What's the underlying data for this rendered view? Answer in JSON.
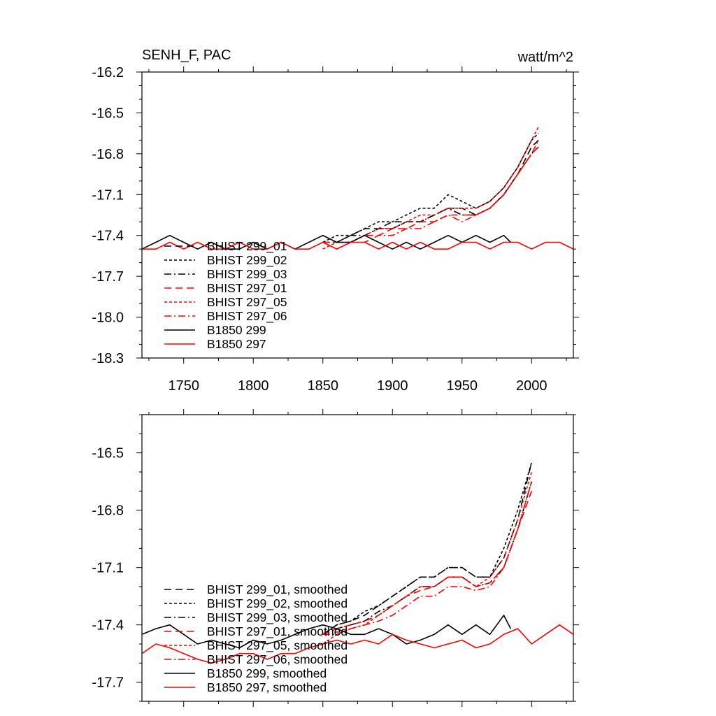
{
  "chart_data": [
    {
      "type": "line",
      "title": "SENH_F, PAC",
      "units": "watt/m^2",
      "xlim": [
        1720,
        2030
      ],
      "ylim": [
        -18.3,
        -16.2
      ],
      "x_ticks": [
        1750,
        1800,
        1850,
        1900,
        1950,
        2000
      ],
      "y_ticks": [
        -16.2,
        -16.5,
        -16.8,
        -17.1,
        -17.4,
        -17.7,
        -18.0,
        -18.3
      ],
      "legend_position": "bottom-left",
      "series": [
        {
          "name": "BHIST 299_01",
          "color": "#000000",
          "dash": "long-dash",
          "x": [
            1850,
            1860,
            1870,
            1880,
            1890,
            1900,
            1910,
            1920,
            1930,
            1940,
            1950,
            1960,
            1970,
            1980,
            1990,
            2000,
            2005
          ],
          "y": [
            -17.4,
            -17.45,
            -17.4,
            -17.35,
            -17.35,
            -17.3,
            -17.3,
            -17.3,
            -17.25,
            -17.2,
            -17.2,
            -17.25,
            -17.2,
            -17.1,
            -16.95,
            -16.75,
            -16.7
          ]
        },
        {
          "name": "BHIST 299_02",
          "color": "#000000",
          "dash": "short-dash",
          "x": [
            1850,
            1860,
            1870,
            1880,
            1890,
            1900,
            1910,
            1920,
            1930,
            1940,
            1950,
            1960,
            1970,
            1980,
            1990,
            2000,
            2005
          ],
          "y": [
            -17.45,
            -17.4,
            -17.4,
            -17.35,
            -17.3,
            -17.3,
            -17.25,
            -17.2,
            -17.2,
            -17.1,
            -17.15,
            -17.2,
            -17.15,
            -17.05,
            -16.9,
            -16.7,
            -16.65
          ]
        },
        {
          "name": "BHIST 299_03",
          "color": "#000000",
          "dash": "dash-dot",
          "x": [
            1850,
            1860,
            1870,
            1880,
            1890,
            1900,
            1910,
            1920,
            1930,
            1940,
            1950,
            1960,
            1970,
            1980,
            1990,
            2000,
            2005
          ],
          "y": [
            -17.45,
            -17.45,
            -17.4,
            -17.4,
            -17.35,
            -17.35,
            -17.3,
            -17.3,
            -17.25,
            -17.2,
            -17.25,
            -17.25,
            -17.2,
            -17.1,
            -16.95,
            -16.8,
            -16.75
          ]
        },
        {
          "name": "BHIST 297_01",
          "color": "#ff0000",
          "dash": "long-dash",
          "x": [
            1850,
            1860,
            1870,
            1880,
            1890,
            1900,
            1910,
            1920,
            1930,
            1940,
            1950,
            1960,
            1970,
            1980,
            1990,
            2000,
            2005
          ],
          "y": [
            -17.45,
            -17.45,
            -17.45,
            -17.4,
            -17.4,
            -17.35,
            -17.35,
            -17.3,
            -17.3,
            -17.25,
            -17.25,
            -17.25,
            -17.2,
            -17.1,
            -16.95,
            -16.8,
            -16.75
          ]
        },
        {
          "name": "BHIST 297_05",
          "color": "#ff0000",
          "dash": "short-dash",
          "x": [
            1850,
            1860,
            1870,
            1880,
            1890,
            1900,
            1910,
            1920,
            1930,
            1940,
            1950,
            1960,
            1970,
            1980,
            1990,
            2000,
            2005
          ],
          "y": [
            -17.5,
            -17.45,
            -17.45,
            -17.4,
            -17.35,
            -17.35,
            -17.3,
            -17.25,
            -17.25,
            -17.2,
            -17.2,
            -17.2,
            -17.15,
            -17.05,
            -16.9,
            -16.7,
            -16.6
          ]
        },
        {
          "name": "BHIST 297_06",
          "color": "#ff0000",
          "dash": "dash-dot",
          "x": [
            1850,
            1860,
            1870,
            1880,
            1890,
            1900,
            1910,
            1920,
            1930,
            1940,
            1950,
            1960,
            1970,
            1980,
            1990,
            2000,
            2005
          ],
          "y": [
            -17.45,
            -17.5,
            -17.45,
            -17.45,
            -17.4,
            -17.4,
            -17.35,
            -17.35,
            -17.3,
            -17.25,
            -17.3,
            -17.25,
            -17.2,
            -17.1,
            -16.95,
            -16.8,
            -16.7
          ]
        },
        {
          "name": "B1850 299",
          "color": "#000000",
          "dash": "solid",
          "x": [
            1720,
            1730,
            1740,
            1750,
            1760,
            1770,
            1780,
            1790,
            1800,
            1810,
            1820,
            1830,
            1840,
            1850,
            1860,
            1870,
            1880,
            1890,
            1900,
            1910,
            1920,
            1930,
            1940,
            1950,
            1960,
            1970,
            1980,
            1985
          ],
          "y": [
            -17.5,
            -17.45,
            -17.4,
            -17.45,
            -17.5,
            -17.45,
            -17.5,
            -17.5,
            -17.45,
            -17.5,
            -17.45,
            -17.5,
            -17.45,
            -17.4,
            -17.45,
            -17.45,
            -17.4,
            -17.45,
            -17.5,
            -17.45,
            -17.5,
            -17.45,
            -17.4,
            -17.45,
            -17.4,
            -17.45,
            -17.4,
            -17.45
          ]
        },
        {
          "name": "B1850 297",
          "color": "#ff0000",
          "dash": "solid",
          "x": [
            1720,
            1730,
            1740,
            1750,
            1760,
            1770,
            1780,
            1790,
            1800,
            1810,
            1820,
            1830,
            1840,
            1850,
            1860,
            1870,
            1880,
            1890,
            1900,
            1910,
            1920,
            1930,
            1940,
            1950,
            1960,
            1970,
            1980,
            1990,
            2000,
            2010,
            2020,
            2030
          ],
          "y": [
            -17.5,
            -17.5,
            -17.45,
            -17.5,
            -17.45,
            -17.5,
            -17.5,
            -17.45,
            -17.5,
            -17.5,
            -17.45,
            -17.5,
            -17.5,
            -17.45,
            -17.5,
            -17.45,
            -17.45,
            -17.5,
            -17.45,
            -17.5,
            -17.45,
            -17.5,
            -17.5,
            -17.45,
            -17.45,
            -17.5,
            -17.45,
            -17.45,
            -17.5,
            -17.45,
            -17.45,
            -17.5
          ]
        }
      ]
    },
    {
      "type": "line",
      "title": "",
      "xlim": [
        1720,
        2030
      ],
      "ylim": [
        -17.8,
        -16.3
      ],
      "x_ticks": [
        1750,
        1800,
        1850,
        1900,
        1950,
        2000
      ],
      "y_ticks": [
        -16.5,
        -16.8,
        -17.1,
        -17.4,
        -17.7
      ],
      "legend_position": "bottom-left",
      "series": [
        {
          "name": "BHIST 299_01, smoothed",
          "color": "#000000",
          "dash": "long-dash",
          "x": [
            1850,
            1860,
            1870,
            1880,
            1890,
            1900,
            1910,
            1920,
            1930,
            1940,
            1950,
            1960,
            1970,
            1980,
            1990,
            2000
          ],
          "y": [
            -17.45,
            -17.4,
            -17.38,
            -17.35,
            -17.3,
            -17.25,
            -17.2,
            -17.15,
            -17.15,
            -17.1,
            -17.1,
            -17.15,
            -17.15,
            -17.05,
            -16.85,
            -16.55
          ]
        },
        {
          "name": "BHIST 299_02, smoothed",
          "color": "#000000",
          "dash": "short-dash",
          "x": [
            1850,
            1860,
            1870,
            1880,
            1890,
            1900,
            1910,
            1920,
            1930,
            1940,
            1950,
            1960,
            1970,
            1980,
            1990,
            2000
          ],
          "y": [
            -17.45,
            -17.4,
            -17.38,
            -17.33,
            -17.3,
            -17.25,
            -17.2,
            -17.15,
            -17.15,
            -17.1,
            -17.1,
            -17.15,
            -17.15,
            -17.0,
            -16.8,
            -16.55
          ]
        },
        {
          "name": "BHIST 299_03, smoothed",
          "color": "#000000",
          "dash": "dash-dot",
          "x": [
            1850,
            1860,
            1870,
            1880,
            1890,
            1900,
            1910,
            1920,
            1930,
            1940,
            1950,
            1960,
            1970,
            1980,
            1990,
            2000
          ],
          "y": [
            -17.45,
            -17.42,
            -17.4,
            -17.38,
            -17.33,
            -17.3,
            -17.25,
            -17.2,
            -17.2,
            -17.15,
            -17.15,
            -17.2,
            -17.18,
            -17.1,
            -16.9,
            -16.65
          ]
        },
        {
          "name": "BHIST 297_01, smoothed",
          "color": "#ff0000",
          "dash": "long-dash",
          "x": [
            1850,
            1860,
            1870,
            1880,
            1890,
            1900,
            1910,
            1920,
            1930,
            1940,
            1950,
            1960,
            1970,
            1980,
            1990,
            2000
          ],
          "y": [
            -17.45,
            -17.42,
            -17.4,
            -17.38,
            -17.35,
            -17.3,
            -17.25,
            -17.22,
            -17.2,
            -17.15,
            -17.15,
            -17.2,
            -17.18,
            -17.1,
            -16.9,
            -16.7
          ]
        },
        {
          "name": "BHIST 297_05, smoothed",
          "color": "#ff0000",
          "dash": "short-dash",
          "x": [
            1850,
            1860,
            1870,
            1880,
            1890,
            1900,
            1910,
            1920,
            1930,
            1940,
            1950,
            1960,
            1970,
            1980,
            1990,
            2000
          ],
          "y": [
            -17.5,
            -17.45,
            -17.42,
            -17.4,
            -17.35,
            -17.3,
            -17.25,
            -17.2,
            -17.2,
            -17.15,
            -17.15,
            -17.2,
            -17.15,
            -17.05,
            -16.85,
            -16.6
          ]
        },
        {
          "name": "BHIST 297_06, smoothed",
          "color": "#ff0000",
          "dash": "dash-dot",
          "x": [
            1850,
            1860,
            1870,
            1880,
            1890,
            1900,
            1910,
            1920,
            1930,
            1940,
            1950,
            1960,
            1970,
            1980,
            1990,
            2000
          ],
          "y": [
            -17.45,
            -17.45,
            -17.42,
            -17.4,
            -17.38,
            -17.35,
            -17.3,
            -17.25,
            -17.25,
            -17.2,
            -17.2,
            -17.22,
            -17.2,
            -17.1,
            -16.9,
            -16.65
          ]
        },
        {
          "name": "B1850 299, smoothed",
          "color": "#000000",
          "dash": "solid",
          "x": [
            1720,
            1730,
            1740,
            1750,
            1760,
            1770,
            1780,
            1790,
            1800,
            1810,
            1820,
            1830,
            1840,
            1850,
            1860,
            1870,
            1880,
            1890,
            1900,
            1910,
            1920,
            1930,
            1940,
            1950,
            1960,
            1970,
            1980,
            1985
          ],
          "y": [
            -17.45,
            -17.42,
            -17.4,
            -17.45,
            -17.5,
            -17.48,
            -17.5,
            -17.52,
            -17.48,
            -17.5,
            -17.48,
            -17.45,
            -17.42,
            -17.4,
            -17.42,
            -17.45,
            -17.45,
            -17.42,
            -17.45,
            -17.5,
            -17.48,
            -17.45,
            -17.4,
            -17.45,
            -17.4,
            -17.45,
            -17.35,
            -17.42
          ]
        },
        {
          "name": "B1850 297, smoothed",
          "color": "#ff0000",
          "dash": "solid",
          "x": [
            1720,
            1730,
            1740,
            1750,
            1760,
            1770,
            1780,
            1790,
            1800,
            1810,
            1820,
            1830,
            1840,
            1850,
            1860,
            1870,
            1880,
            1890,
            1900,
            1910,
            1920,
            1930,
            1940,
            1950,
            1960,
            1970,
            1980,
            1990,
            2000,
            2010,
            2020,
            2030
          ],
          "y": [
            -17.55,
            -17.5,
            -17.52,
            -17.55,
            -17.58,
            -17.6,
            -17.58,
            -17.55,
            -17.55,
            -17.58,
            -17.55,
            -17.55,
            -17.52,
            -17.5,
            -17.48,
            -17.5,
            -17.48,
            -17.5,
            -17.45,
            -17.48,
            -17.5,
            -17.52,
            -17.5,
            -17.48,
            -17.52,
            -17.5,
            -17.45,
            -17.42,
            -17.5,
            -17.45,
            -17.4,
            -17.45
          ]
        }
      ]
    }
  ]
}
